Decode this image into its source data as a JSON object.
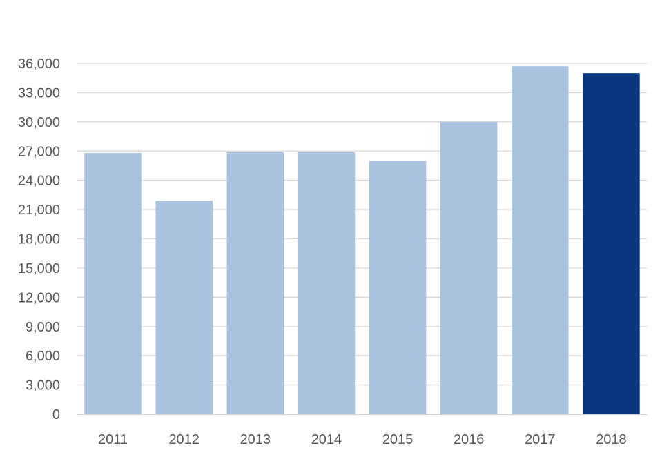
{
  "chart_data": {
    "type": "bar",
    "title": "",
    "xlabel": "",
    "ylabel": "",
    "categories": [
      "2011",
      "2012",
      "2013",
      "2014",
      "2015",
      "2016",
      "2017",
      "2018"
    ],
    "values": [
      26800,
      21900,
      26900,
      26900,
      26000,
      30000,
      35700,
      35000
    ],
    "ylim": [
      0,
      36000
    ],
    "ytick_labels": [
      "0",
      "3,000",
      "6,000",
      "9,000",
      "12,000",
      "15,000",
      "18,000",
      "21,000",
      "24,000",
      "27,000",
      "30,000",
      "33,000",
      "36,000"
    ],
    "grid": true,
    "legend": "none",
    "colors": {
      "bar": "#a9c3de",
      "highlight_bar": "#08367f",
      "gridline": "#d9d9d9",
      "axis_line": "#bfbfbf",
      "tick_text": "#595959"
    },
    "highlight_category": "2018"
  }
}
